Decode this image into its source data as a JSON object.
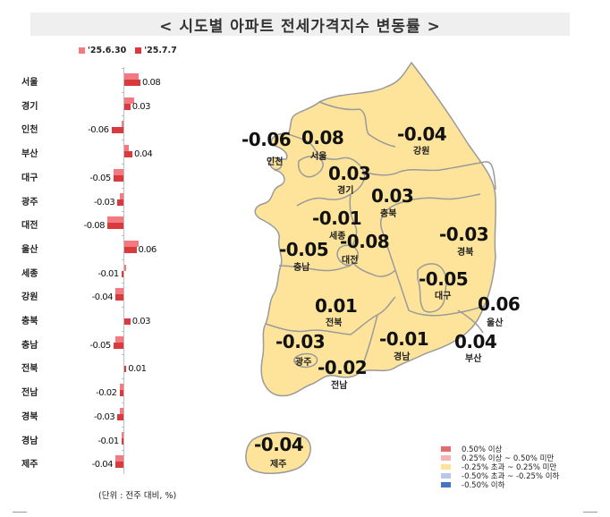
{
  "title": "< 시도별 아파트 전세가격지수 변동률 >",
  "legend_top": [
    {
      "label": "'25.6.30",
      "color": "#f27a80"
    },
    {
      "label": "'25.7.7",
      "color": "#d83a3e"
    }
  ],
  "unit_note": "(단위 : 전주 대비, %)",
  "map_legend": [
    {
      "label": "0.50% 이상",
      "color": "#e46c6c"
    },
    {
      "label": "0.25% 이상 ~ 0.50% 미만",
      "color": "#f5b3b3"
    },
    {
      "label": "-0.25% 초과 ~ 0.25% 미만",
      "color": "#fde49a"
    },
    {
      "label": "-0.50% 초과 ~ -0.25% 이하",
      "color": "#b9c8ea"
    },
    {
      "label": "-0.50% 이하",
      "color": "#4472c4"
    }
  ],
  "colors": {
    "map_fill": "#fde49a",
    "map_border": "#9a9a9a",
    "prev_bar": "#f27a80",
    "curr_bar": "#d83a3e",
    "title_bg": "#efefef"
  },
  "chart_data": [
    {
      "type": "bar",
      "orientation": "horizontal",
      "title": "시도별 아파트 전세가격지수 변동률",
      "xlabel": "전주 대비 (%)",
      "ylabel": "",
      "categories": [
        "서울",
        "경기",
        "인천",
        "부산",
        "대구",
        "광주",
        "대전",
        "울산",
        "세종",
        "강원",
        "충북",
        "충남",
        "전북",
        "전남",
        "경북",
        "경남",
        "제주"
      ],
      "series": [
        {
          "name": "'25.6.30",
          "values": [
            0.07,
            0.05,
            -0.01,
            0.02,
            -0.05,
            -0.02,
            -0.08,
            0.07,
            0.01,
            -0.04,
            0.0,
            -0.04,
            0.0,
            -0.02,
            -0.02,
            -0.01,
            -0.04
          ]
        },
        {
          "name": "'25.7.7",
          "values": [
            0.08,
            0.03,
            -0.06,
            0.04,
            -0.05,
            -0.03,
            -0.08,
            0.06,
            -0.01,
            -0.04,
            0.03,
            -0.05,
            0.01,
            -0.02,
            -0.03,
            -0.01,
            -0.04
          ]
        }
      ],
      "data_labels": [
        "0.08",
        "0.03",
        "-0.06",
        "0.04",
        "-0.05",
        "-0.03",
        "-0.08",
        "0.06",
        "-0.01",
        "-0.04",
        "0.03",
        "-0.05",
        "0.01",
        "-0.02",
        "-0.03",
        "-0.01",
        "-0.04"
      ],
      "legend_position": "top",
      "grid": false
    },
    {
      "type": "heatmap",
      "subtype": "choropleth-map",
      "title": "시도별 전세가격지수 변동률 지도 ('25.7.7)",
      "regions": [
        {
          "name": "인천",
          "value": "-0.06"
        },
        {
          "name": "서울",
          "value": "0.08"
        },
        {
          "name": "경기",
          "value": "0.03"
        },
        {
          "name": "강원",
          "value": "-0.04"
        },
        {
          "name": "충북",
          "value": "0.03"
        },
        {
          "name": "세종",
          "value": "-0.01"
        },
        {
          "name": "대전",
          "value": "-0.08"
        },
        {
          "name": "충남",
          "value": "-0.05"
        },
        {
          "name": "경북",
          "value": "-0.03"
        },
        {
          "name": "대구",
          "value": "-0.05"
        },
        {
          "name": "울산",
          "value": "0.06"
        },
        {
          "name": "전북",
          "value": "0.01"
        },
        {
          "name": "광주",
          "value": "-0.03"
        },
        {
          "name": "경남",
          "value": "-0.01"
        },
        {
          "name": "부산",
          "value": "0.04"
        },
        {
          "name": "전남",
          "value": "-0.02"
        },
        {
          "name": "제주",
          "value": "-0.04"
        }
      ],
      "legend": [
        "0.50% 이상",
        "0.25% 이상 ~ 0.50% 미만",
        "-0.25% 초과 ~ 0.25% 미만",
        "-0.50% 초과 ~ -0.25% 이하",
        "-0.50% 이하"
      ]
    }
  ]
}
